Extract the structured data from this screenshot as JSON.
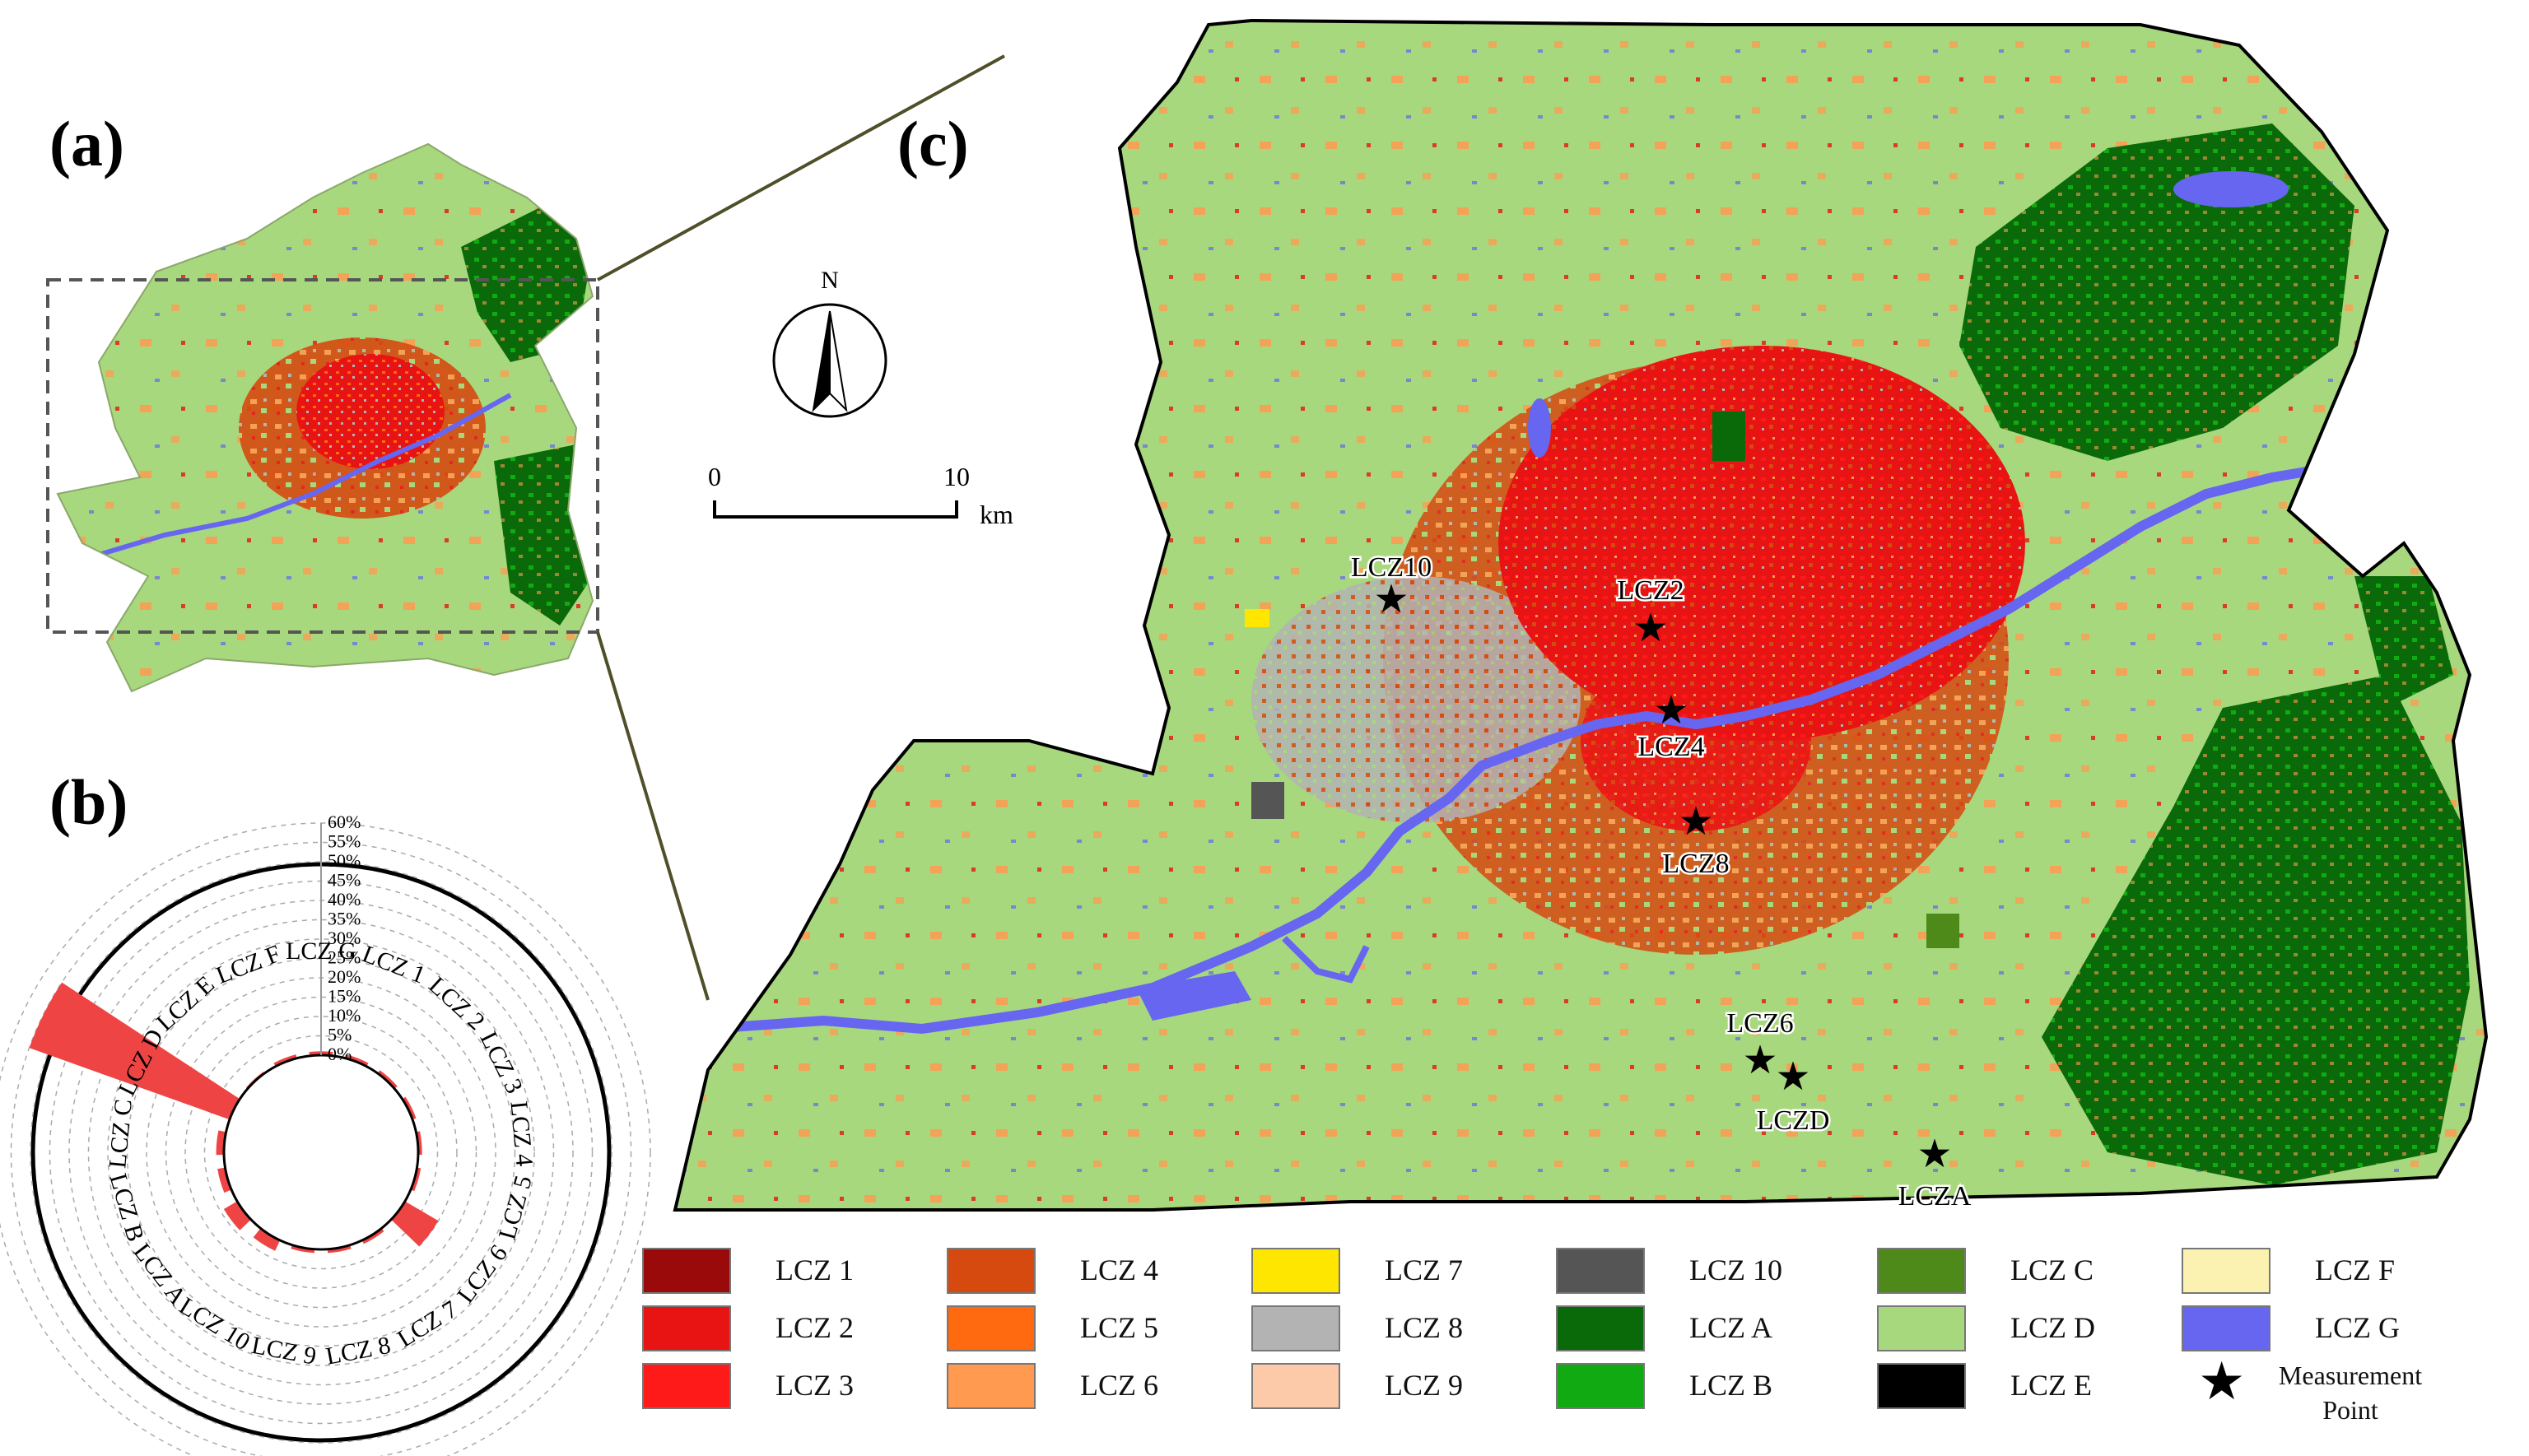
{
  "panels": {
    "a": "(a)",
    "b": "(b)",
    "c": "(c)"
  },
  "north_arrow": {
    "label": "N"
  },
  "scale_bar": {
    "start": "0",
    "end": "10",
    "unit": "km"
  },
  "measurement_points": [
    {
      "name": "LCZ10"
    },
    {
      "name": "LCZ2"
    },
    {
      "name": "LCZ4"
    },
    {
      "name": "LCZ8"
    },
    {
      "name": "LCZ6"
    },
    {
      "name": "LCZD"
    },
    {
      "name": "LCZA"
    }
  ],
  "legend": {
    "items": [
      {
        "label": "LCZ 1",
        "color": "#9a0a0a"
      },
      {
        "label": "LCZ 2",
        "color": "#e81414"
      },
      {
        "label": "LCZ 3",
        "color": "#ff1a1a"
      },
      {
        "label": "LCZ 4",
        "color": "#d64a10"
      },
      {
        "label": "LCZ 5",
        "color": "#ff6a10"
      },
      {
        "label": "LCZ 6",
        "color": "#ff9a50"
      },
      {
        "label": "LCZ 7",
        "color": "#ffe600"
      },
      {
        "label": "LCZ 8",
        "color": "#b3b3b3"
      },
      {
        "label": "LCZ 9",
        "color": "#fcc9a9"
      },
      {
        "label": "LCZ 10",
        "color": "#555555"
      },
      {
        "label": "LCZ A",
        "color": "#0a6a0a"
      },
      {
        "label": "LCZ B",
        "color": "#12aa12"
      },
      {
        "label": "LCZ C",
        "color": "#4d8a1a"
      },
      {
        "label": "LCZ D",
        "color": "#a8d87e"
      },
      {
        "label": "LCZ E",
        "color": "#000000"
      },
      {
        "label": "LCZ F",
        "color": "#fbf1b0"
      },
      {
        "label": "LCZ G",
        "color": "#6666f0"
      }
    ],
    "measurement_label": "Measurement Point"
  },
  "chart_data": {
    "type": "radial-bar",
    "title": "",
    "radial_ticks": [
      "0%",
      "5%",
      "10%",
      "15%",
      "20%",
      "25%",
      "30%",
      "35%",
      "40%",
      "45%",
      "50%",
      "55%",
      "60%"
    ],
    "rlim": [
      0,
      60
    ],
    "unit": "%",
    "color": "#ef4444",
    "categories": [
      "LCZ 1",
      "LCZ 2",
      "LCZ 3",
      "LCZ 4",
      "LCZ 5",
      "LCZ 6",
      "LCZ 7",
      "LCZ 8",
      "LCZ 9",
      "LCZ 10",
      "LCZ A",
      "LCZ B",
      "LCZ C",
      "LCZ D",
      "LCZ E",
      "LCZ F",
      "LCZ G"
    ],
    "values": [
      1,
      1,
      1,
      1,
      1,
      10,
      1,
      1,
      1,
      3,
      4,
      2,
      2,
      55,
      0.5,
      1,
      1
    ]
  }
}
